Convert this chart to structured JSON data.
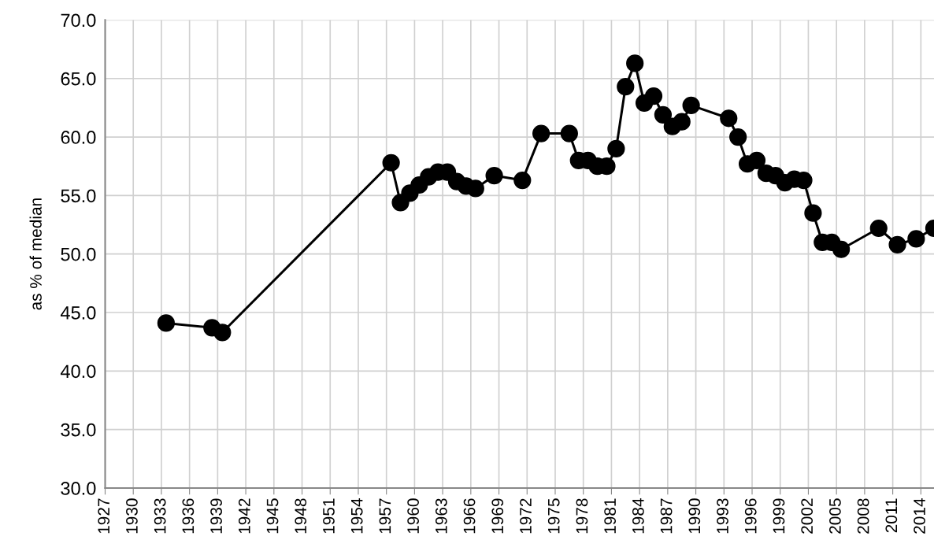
{
  "chart_data": {
    "type": "line",
    "ylabel": "as % of median",
    "x": [
      1933.5,
      1938.4,
      1939.5,
      1957.5,
      1958.5,
      1959.5,
      1960.5,
      1961.5,
      1962.5,
      1963.5,
      1964.5,
      1965.5,
      1966.5,
      1968.5,
      1971.5,
      1973.5,
      1976.5,
      1977.5,
      1978.5,
      1979.5,
      1980.5,
      1981.5,
      1982.5,
      1983.5,
      1984.5,
      1985.5,
      1986.5,
      1987.5,
      1988.5,
      1989.5,
      1993.5,
      1994.5,
      1995.5,
      1996.5,
      1997.5,
      1998.5,
      1999.5,
      2000.5,
      2001.5,
      2002.5,
      2003.5,
      2004.5,
      2005.5,
      2009.5,
      2011.5,
      2013.5,
      2015.4
    ],
    "series": [
      {
        "color": "#000000",
        "values": [
          44.1,
          43.7,
          43.3,
          57.8,
          54.4,
          55.2,
          55.9,
          56.6,
          57.0,
          57.0,
          56.2,
          55.8,
          55.6,
          56.7,
          56.3,
          60.3,
          60.3,
          58.0,
          58.0,
          57.5,
          57.5,
          59.0,
          64.3,
          66.3,
          62.9,
          63.5,
          61.9,
          60.9,
          61.3,
          62.7,
          61.6,
          60.0,
          57.7,
          58.0,
          56.9,
          56.7,
          56.1,
          56.4,
          56.3,
          53.5,
          51.0,
          51.0,
          50.4,
          52.2,
          50.8,
          51.3,
          52.2
        ]
      }
    ],
    "xlim": [
      1927,
      2015.4
    ],
    "xticks": [
      1927,
      1930,
      1933,
      1936,
      1939,
      1942,
      1945,
      1948,
      1951,
      1954,
      1957,
      1960,
      1963,
      1966,
      1969,
      1972,
      1975,
      1978,
      1981,
      1984,
      1987,
      1990,
      1993,
      1996,
      1999,
      2002,
      2005,
      2008,
      2011,
      2014
    ],
    "ylim": [
      30,
      70
    ],
    "yticks": [
      {
        "value": 30,
        "label": "30.0"
      },
      {
        "value": 35,
        "label": "35.0"
      },
      {
        "value": 40,
        "label": "40.0"
      },
      {
        "value": 45,
        "label": "45.0"
      },
      {
        "value": 50,
        "label": "50.0"
      },
      {
        "value": 55,
        "label": "55.0"
      },
      {
        "value": 60,
        "label": "60.0"
      },
      {
        "value": 65,
        "label": "65.0"
      },
      {
        "value": 70,
        "label": "70.0"
      }
    ],
    "grid": true,
    "marker": "circle",
    "line_style": "solid"
  }
}
